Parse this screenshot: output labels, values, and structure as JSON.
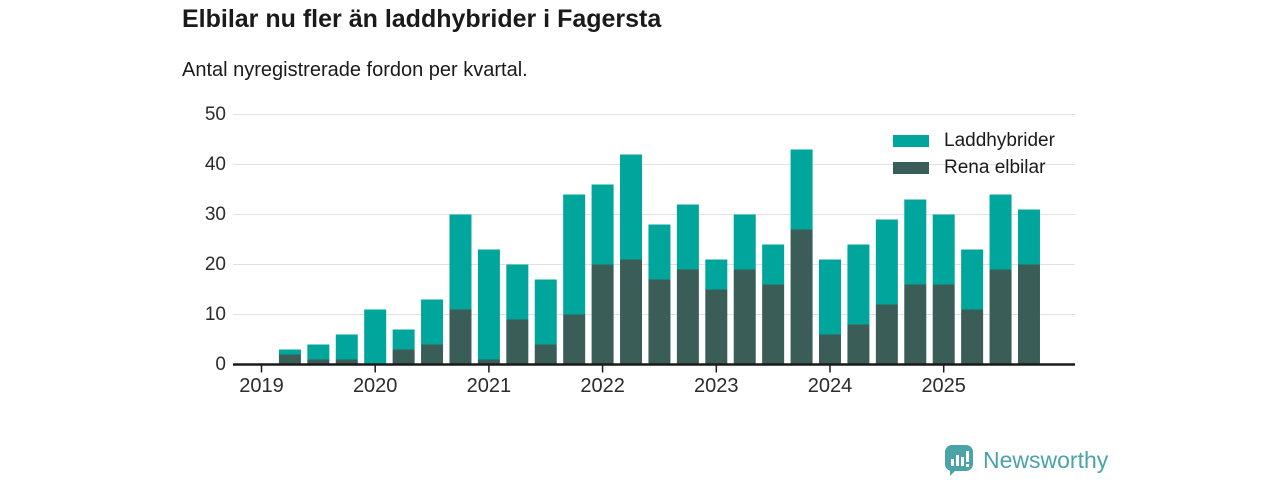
{
  "header": {
    "title": "Elbilar nu fler än laddhybrider i Fagersta",
    "subtitle": "Antal nyregistrerade fordon per kvartal."
  },
  "legend": {
    "items": [
      {
        "label": "Laddhybrider",
        "color": "#00A69B"
      },
      {
        "label": "Rena elbilar",
        "color": "#3B5D57"
      }
    ]
  },
  "chart_data": {
    "type": "bar",
    "stacked": true,
    "title": "Elbilar nu fler än laddhybrider i Fagersta",
    "subtitle": "Antal nyregistrerade fordon per kvartal.",
    "x": [
      "2019-Q2",
      "2019-Q3",
      "2019-Q4",
      "2020-Q1",
      "2020-Q2",
      "2020-Q3",
      "2020-Q4",
      "2021-Q1",
      "2021-Q2",
      "2021-Q3",
      "2021-Q4",
      "2022-Q1",
      "2022-Q2",
      "2022-Q3",
      "2022-Q4",
      "2023-Q1",
      "2023-Q2",
      "2023-Q3",
      "2023-Q4",
      "2024-Q1",
      "2024-Q2",
      "2024-Q3",
      "2024-Q4",
      "2025-Q1",
      "2025-Q2",
      "2025-Q3",
      "2025-Q4"
    ],
    "x_tick_labels": [
      "2019",
      "2020",
      "2021",
      "2022",
      "2023",
      "2024",
      "2025"
    ],
    "y_ticks": [
      0,
      10,
      20,
      30,
      40,
      50
    ],
    "ylim": [
      0,
      50
    ],
    "grid": "horizontal",
    "legend_position": "top-right",
    "series": [
      {
        "name": "Rena elbilar",
        "stack_position": "bottom",
        "color": "#3B5D57",
        "values": [
          2,
          1,
          1,
          0,
          3,
          4,
          11,
          1,
          9,
          4,
          10,
          20,
          21,
          17,
          19,
          15,
          19,
          16,
          27,
          6,
          8,
          12,
          16,
          16,
          11,
          19,
          20
        ]
      },
      {
        "name": "Laddhybrider",
        "stack_position": "top",
        "color": "#00A69B",
        "values": [
          1,
          3,
          5,
          11,
          4,
          9,
          19,
          22,
          11,
          13,
          24,
          16,
          21,
          11,
          13,
          6,
          11,
          8,
          16,
          15,
          16,
          17,
          17,
          14,
          12,
          15,
          11
        ]
      }
    ],
    "totals": [
      3,
      4,
      6,
      11,
      7,
      13,
      30,
      23,
      20,
      17,
      34,
      36,
      42,
      28,
      32,
      21,
      30,
      24,
      43,
      21,
      24,
      29,
      33,
      30,
      23,
      34,
      31
    ]
  },
  "footer": {
    "brand": "Newsworthy"
  },
  "colors": {
    "laddhybrider": "#00A69B",
    "rena_elbilar": "#3B5D57",
    "grid": "#E1E1E1",
    "axis": "#1A1A1A",
    "tick_text": "#2B2B2B",
    "text": "#1A1A1A",
    "brand": "#4AA3A6",
    "background": "#FFFFFF"
  }
}
